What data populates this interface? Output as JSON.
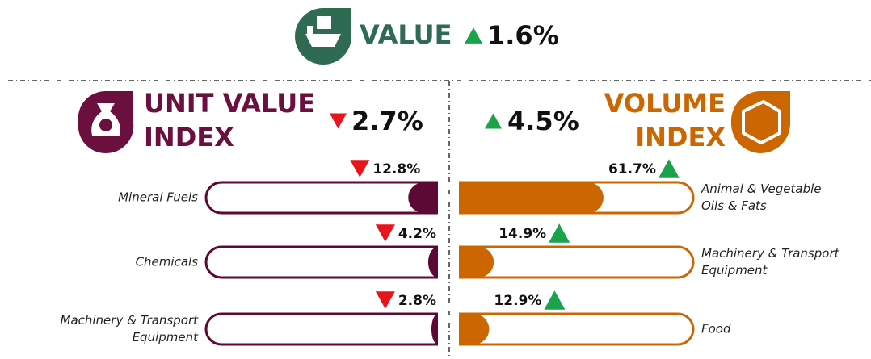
{
  "header": {
    "title": "VALUE",
    "change": {
      "label": "1.6%",
      "direction": "up"
    }
  },
  "unit_value_index": {
    "title_lines": [
      "UNIT VALUE",
      "INDEX"
    ],
    "change": {
      "label": "2.7%",
      "direction": "down"
    },
    "scale": [
      0,
      100
    ],
    "items": [
      {
        "label_lines": [
          "Mineral Fuels"
        ],
        "value": 12.8,
        "value_label": "12.8%",
        "direction": "down"
      },
      {
        "label_lines": [
          "Chemicals"
        ],
        "value": 4.2,
        "value_label": "4.2%",
        "direction": "down"
      },
      {
        "label_lines": [
          "Machinery & Transport",
          "Equipment"
        ],
        "value": 2.8,
        "value_label": "2.8%",
        "direction": "down"
      }
    ]
  },
  "volume_index": {
    "title_lines": [
      "VOLUME",
      "INDEX"
    ],
    "change": {
      "label": "4.5%",
      "direction": "up"
    },
    "scale": [
      0,
      100
    ],
    "items": [
      {
        "label_lines": [
          "Animal & Vegetable",
          "Oils & Fats"
        ],
        "value": 61.7,
        "value_label": "61.7%",
        "direction": "up"
      },
      {
        "label_lines": [
          "Machinery & Transport",
          "Equipment"
        ],
        "value": 14.9,
        "value_label": "14.9%",
        "direction": "up"
      },
      {
        "label_lines": [
          "Food"
        ],
        "value": 12.9,
        "value_label": "12.9%",
        "direction": "up"
      }
    ]
  }
}
